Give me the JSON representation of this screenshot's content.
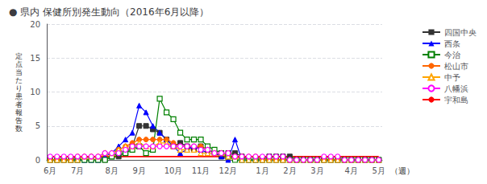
{
  "chart_data": {
    "type": "line",
    "title": "● 県内 保健所別発生動向（2016年6月以降）",
    "ylabel": "定点当たり患者報告数",
    "xlabel": "（週）",
    "categories": [
      "6月",
      null,
      null,
      null,
      "7月",
      null,
      null,
      null,
      null,
      "8月",
      null,
      null,
      null,
      "9月",
      null,
      null,
      null,
      null,
      "10月",
      null,
      null,
      null,
      "11月",
      null,
      null,
      null,
      "12月",
      null,
      null,
      null,
      null,
      "1月",
      null,
      null,
      null,
      "2月",
      null,
      null,
      null,
      "3月",
      null,
      null,
      null,
      null,
      "4月",
      null,
      null,
      null,
      "5月"
    ],
    "series": [
      {
        "name": "四国中央",
        "color": "#333333",
        "marker": "square",
        "values": [
          0,
          0,
          0,
          0,
          0,
          0,
          0,
          0,
          0,
          0.5,
          0.5,
          1,
          2,
          5,
          5,
          4.5,
          4,
          3,
          2,
          2.5,
          2,
          1.5,
          2,
          1.5,
          1,
          0.5,
          1,
          1,
          0.5,
          0,
          0,
          0,
          0.5,
          0.5,
          0.5,
          0.5,
          0,
          0,
          0,
          0,
          0,
          0,
          0,
          0,
          0,
          0,
          0,
          0,
          0
        ]
      },
      {
        "name": "西条",
        "color": "#0000ff",
        "marker": "triangle",
        "values": [
          0,
          0,
          0,
          0,
          0,
          0,
          0,
          0,
          0.5,
          1,
          2,
          3,
          4,
          8,
          7,
          5,
          4,
          3,
          2,
          1,
          1.5,
          2,
          1.5,
          1,
          1,
          0.5,
          0,
          3,
          0,
          0,
          0,
          0,
          0,
          0,
          0,
          0,
          0,
          0,
          0,
          0,
          0,
          0,
          0,
          0,
          0,
          0,
          0,
          0,
          0
        ]
      },
      {
        "name": "今治",
        "color": "#008000",
        "marker": "open_square",
        "values": [
          0,
          0,
          0,
          0,
          0,
          0,
          0,
          0,
          0,
          0.5,
          1,
          1,
          1.5,
          2,
          1,
          1.5,
          9,
          7,
          6,
          4,
          3,
          3,
          3,
          2,
          1.5,
          1,
          0.5,
          0,
          0,
          0,
          0,
          0,
          0,
          0,
          0,
          0,
          0,
          0,
          0,
          0,
          0,
          0,
          0,
          0,
          0,
          0,
          0,
          0,
          0
        ]
      },
      {
        "name": "松山市",
        "color": "#ff6600",
        "marker": "circle",
        "values": [
          0,
          0,
          0,
          0,
          0.5,
          0.5,
          0.5,
          0.5,
          1,
          1,
          1.5,
          2,
          2.5,
          3,
          3,
          3,
          3,
          3,
          2.5,
          2,
          2,
          2,
          2,
          1.5,
          1,
          1,
          1,
          0.5,
          0.5,
          0.5,
          0.5,
          0,
          0,
          0,
          0,
          0,
          0,
          0,
          0,
          0,
          0,
          0,
          0,
          0,
          0,
          0,
          0,
          0,
          0
        ]
      },
      {
        "name": "中予",
        "color": "#ffa500",
        "marker": "open_triangle",
        "values": [
          0,
          0,
          0,
          0,
          0,
          0.5,
          0.5,
          0.5,
          1,
          1,
          1.5,
          2,
          2,
          2.5,
          2,
          2,
          2.5,
          2.5,
          2,
          1.5,
          1.5,
          1.5,
          1,
          1,
          1,
          1,
          0.5,
          0.5,
          0,
          0,
          0,
          0,
          0,
          0,
          0,
          0,
          0,
          0,
          0,
          0,
          0,
          0,
          0,
          0,
          0,
          0,
          0,
          0,
          0
        ]
      },
      {
        "name": "八幡浜",
        "color": "#ff00ff",
        "marker": "open_circle",
        "values": [
          0.5,
          0.5,
          0.5,
          0.5,
          0.5,
          0.5,
          0.5,
          0.5,
          1,
          1,
          1,
          1.5,
          2,
          2,
          2,
          2,
          2,
          2,
          2,
          2,
          2,
          2,
          1.5,
          1.5,
          1,
          1,
          1,
          0.5,
          0.5,
          0.5,
          0.5,
          0.5,
          0.5,
          0.5,
          0.5,
          0,
          0,
          0,
          0,
          0,
          0.5,
          0.5,
          0.5,
          0,
          0,
          0,
          0,
          0,
          0
        ]
      },
      {
        "name": "宇和島",
        "color": "#ff0000",
        "marker": "none",
        "values": [
          0.5,
          0.5,
          0.5,
          0.5,
          0.5,
          0.5,
          0.5,
          0.5,
          0.5,
          0.5,
          0.5,
          0.5,
          0.5,
          0.5,
          0.5,
          0.5,
          0.5,
          0.5,
          0.5,
          0.5,
          0.5,
          0.5,
          0.5,
          0.5,
          0.5,
          0.5,
          0.5,
          0.5,
          0.5,
          0.5,
          0.5,
          0.5,
          0.5,
          0.5,
          0.5,
          0.5,
          0.5,
          0.5,
          0.5,
          0.5,
          0.5,
          0.5,
          0.5,
          0.5,
          0.5,
          0.5,
          0.5,
          0.5,
          0.5
        ]
      }
    ],
    "ylim": [
      0,
      20
    ],
    "yticks": [
      0,
      5,
      10,
      15,
      20
    ],
    "grid": true,
    "legend": "right"
  }
}
